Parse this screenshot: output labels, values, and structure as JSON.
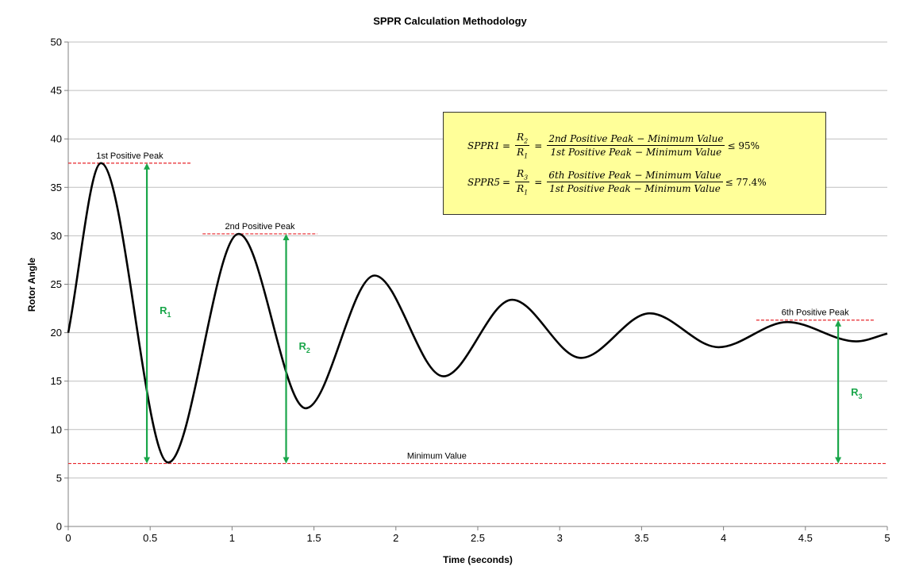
{
  "chart_data": {
    "type": "line",
    "title": "SPPR Calculation Methodology",
    "xlabel": "Time (seconds)",
    "ylabel": "Rotor Angle",
    "xlim": [
      0,
      5
    ],
    "ylim": [
      0,
      50
    ],
    "x_ticks": [
      "0",
      "0.5",
      "1",
      "1.5",
      "2",
      "2.5",
      "3",
      "3.5",
      "4",
      "4.5",
      "5"
    ],
    "y_ticks": [
      "0",
      "5",
      "10",
      "15",
      "20",
      "25",
      "30",
      "35",
      "40",
      "45",
      "50"
    ],
    "grid": "horizontal",
    "series": [
      {
        "name": "",
        "color": "#000000",
        "x": [
          0,
          0.2,
          0.61,
          1.04,
          1.45,
          1.87,
          2.29,
          2.71,
          3.13,
          3.55,
          3.97,
          4.39,
          4.81,
          5.0
        ],
        "y": [
          20,
          37.5,
          6.6,
          30.2,
          12.2,
          25.9,
          15.5,
          23.4,
          17.4,
          22.0,
          18.5,
          21.1,
          19.1,
          19.9
        ]
      }
    ],
    "reference_lines": {
      "peak1": {
        "label": "1st Positive Peak",
        "y": 37.5,
        "x_range": [
          0,
          0.75
        ]
      },
      "peak2": {
        "label": "2nd Positive Peak",
        "y": 30.2,
        "x_range": [
          0.82,
          1.52
        ]
      },
      "peak6": {
        "label": "6th Positive Peak",
        "y": 21.3,
        "x_range": [
          4.2,
          4.92
        ]
      },
      "minimum": {
        "label": "Minimum Value",
        "y": 6.5,
        "x_range": [
          0,
          5
        ]
      }
    },
    "ranges": [
      {
        "label": "R",
        "sub": "1",
        "x": 0.48,
        "y_from": 6.5,
        "y_to": 37.5
      },
      {
        "label": "R",
        "sub": "2",
        "x": 1.33,
        "y_from": 6.5,
        "y_to": 30.2
      },
      {
        "label": "R",
        "sub": "3",
        "x": 4.7,
        "y_from": 6.5,
        "y_to": 21.3
      }
    ],
    "colors": {
      "curve": "#000000",
      "reference": "#e8262b",
      "range": "#1aa64a",
      "box": "#ffff99"
    },
    "formulas": {
      "f1": {
        "lhs": "SPPR1",
        "r_num": "R",
        "r_num_sub": "2",
        "r_den": "R",
        "r_den_sub": "1",
        "numerator": "2nd Positive Peak − Minimum Value",
        "denominator": "1st Positive Peak − Minimum Value",
        "limit": "≤ 95%"
      },
      "f2": {
        "lhs": "SPPR5",
        "r_num": "R",
        "r_num_sub": "3",
        "r_den": "R",
        "r_den_sub": "1",
        "numerator": "6th Positive Peak − Minimum Value",
        "denominator": "1st Positive Peak − Minimum Value",
        "limit": "≤ 77.4%"
      }
    }
  }
}
